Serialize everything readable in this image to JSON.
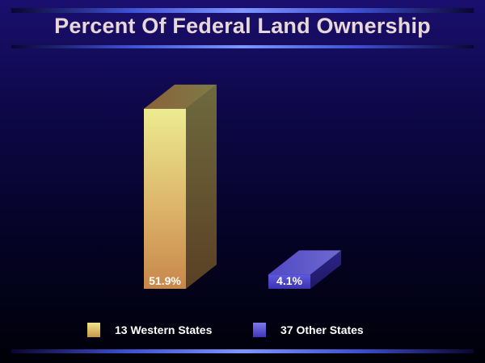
{
  "title": "Percent Of Federal Land Ownership",
  "colors": {
    "series_0": "#e6e37a",
    "series_1": "#4e45c8"
  },
  "chart_data": {
    "type": "bar",
    "three_d": true,
    "title": "Percent Of Federal Land Ownership",
    "categories": [
      "13 Western States",
      "37 Other States"
    ],
    "values": [
      51.9,
      4.1
    ],
    "value_labels": [
      "51.9%",
      "4.1%"
    ],
    "xlabel": "",
    "ylabel": "",
    "ylim": [
      0,
      60
    ],
    "grid": false,
    "legend": "bottom-center"
  },
  "legend": [
    {
      "label": "13 Western States"
    },
    {
      "label": "37 Other States"
    }
  ]
}
